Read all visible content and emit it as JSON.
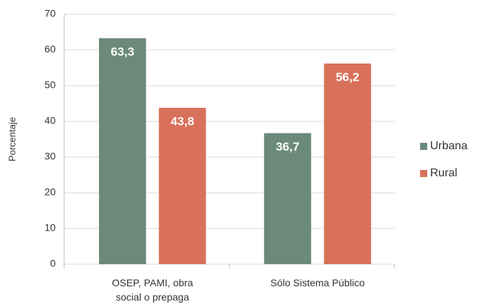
{
  "chart_data": {
    "type": "bar",
    "categories": [
      "OSEP, PAMI, obra social o prepaga",
      "Sólo Sistema Público"
    ],
    "series": [
      {
        "name": "Urbana",
        "color": "#6b8a7a",
        "values": [
          63.3,
          36.7
        ],
        "value_labels": [
          "63,3",
          "36,7"
        ]
      },
      {
        "name": "Rural",
        "color": "#d9705a",
        "values": [
          43.8,
          56.2
        ],
        "value_labels": [
          "43,8",
          "56,2"
        ]
      }
    ],
    "y_label": "Porcentaje",
    "ylim": [
      0,
      70
    ],
    "yticks": [
      0,
      10,
      20,
      30,
      40,
      50,
      60,
      70
    ],
    "grid": true,
    "legend": "right"
  }
}
